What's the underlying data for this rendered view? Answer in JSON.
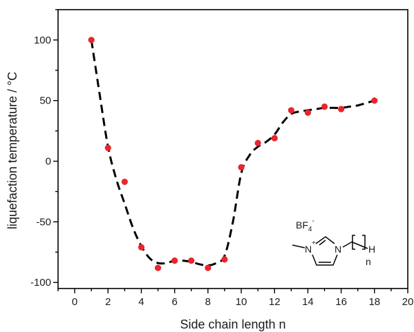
{
  "chart_data": {
    "type": "scatter",
    "title": "",
    "xlabel": "Side chain length n",
    "ylabel": "liquefaction temperature / °C",
    "xlim": [
      -1,
      20
    ],
    "ylim": [
      -105,
      125
    ],
    "x_ticks": [
      0,
      2,
      4,
      6,
      8,
      10,
      12,
      14,
      16,
      18,
      20
    ],
    "y_ticks": [
      -100,
      -50,
      0,
      50,
      100
    ],
    "grid": false,
    "legend": "none",
    "series": [
      {
        "kind": "points",
        "color": "#e8262c",
        "x": [
          1,
          2,
          3,
          4,
          5,
          6,
          7,
          8,
          9,
          10,
          11,
          12,
          13,
          14,
          15,
          16,
          18
        ],
        "y": [
          100,
          11,
          -17,
          -71,
          -88,
          -82,
          -82,
          -88,
          -81,
          -5,
          15,
          19,
          42,
          40,
          45,
          43,
          50
        ]
      },
      {
        "kind": "dashed-fit",
        "color": "#000000",
        "x": [
          1,
          1.5,
          2,
          2.5,
          3,
          3.5,
          4,
          4.5,
          5,
          5.5,
          6,
          6.5,
          7,
          7.5,
          8,
          8.5,
          9,
          9.5,
          10,
          10.5,
          11,
          11.5,
          12,
          12.5,
          13,
          13.5,
          14,
          14.5,
          15,
          15.5,
          16,
          16.5,
          17,
          17.5,
          18
        ],
        "y": [
          100,
          55,
          12,
          -15,
          -35,
          -55,
          -70,
          -80,
          -84,
          -84,
          -82,
          -82,
          -83,
          -85,
          -86,
          -84,
          -78,
          -50,
          -10,
          5,
          12,
          16,
          22,
          32,
          39,
          41,
          42,
          43,
          44,
          44,
          44,
          45,
          46,
          48,
          50
        ]
      }
    ],
    "annotation": {
      "anion": "BF",
      "anion_sub": "4",
      "anion_sup": "-",
      "n_atom_left": "N",
      "n_charge": "+",
      "n_atom_right": "N",
      "hydrogen": "H",
      "repeat_index": "n"
    }
  }
}
